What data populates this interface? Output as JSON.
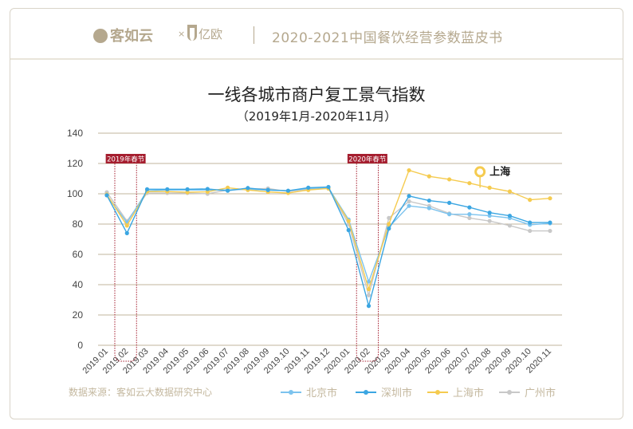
{
  "header": {
    "brand1": "客如云",
    "times": "×",
    "brand2": "亿欧",
    "report_title": "2020-2021中国餐饮经营参数蓝皮书"
  },
  "source": "数据来源：客如云大数据研究中心",
  "colors": {
    "beijing": "#7cc3ee",
    "shenzhen": "#3ba6e2",
    "shanghai": "#f5cb4f",
    "guangzhou": "#c8c8c8",
    "festival": "#a51e2f",
    "grid": "#c2b59c"
  },
  "chart_data": {
    "type": "line",
    "title": "一线各城市商户复工景气指数",
    "subtitle": "（2019年1月-2020年11月）",
    "xlabel": "",
    "ylabel": "",
    "ylim": [
      0,
      140
    ],
    "yticks": [
      0,
      20,
      40,
      60,
      80,
      100,
      120,
      140
    ],
    "grid": true,
    "legend_placement": "bottom-right",
    "x": [
      "2019.01",
      "2019.02",
      "2019.03",
      "2019.04",
      "2019.05",
      "2019.06",
      "2019.07",
      "2019.08",
      "2019.09",
      "2019.10",
      "2019.11",
      "2019.12",
      "2020.01",
      "2020.02",
      "2020.03",
      "2020.04",
      "2020.05",
      "2020.06",
      "2020.07",
      "2020.08",
      "2020.09",
      "2020.10",
      "2020.11"
    ],
    "series": [
      {
        "name": "北京市",
        "key": "beijing",
        "values": [
          99,
          81,
          102,
          102.5,
          102.5,
          102.5,
          102.5,
          103,
          102.5,
          102,
          103.5,
          104,
          83,
          42,
          78,
          92,
          90.5,
          86.5,
          86.5,
          85.5,
          84,
          79.5,
          80.5
        ]
      },
      {
        "name": "深圳市",
        "key": "shenzhen",
        "values": [
          99,
          74,
          103,
          103,
          103,
          103.2,
          102,
          103.8,
          102.5,
          102,
          104,
          104.5,
          76,
          26,
          77,
          98.5,
          95.5,
          94,
          91,
          87.5,
          85.5,
          81,
          81
        ]
      },
      {
        "name": "上海市",
        "key": "shanghai",
        "values": [
          99.5,
          79,
          101.5,
          101.5,
          101,
          101.3,
          104,
          102.5,
          101.2,
          100.5,
          102.5,
          103.5,
          82,
          37,
          80,
          115.5,
          111.5,
          109.5,
          107,
          104,
          101.5,
          96,
          97
        ]
      },
      {
        "name": "广州市",
        "key": "guangzhou",
        "values": [
          101,
          82,
          100.5,
          100.5,
          100.5,
          100,
          102.5,
          103,
          103.5,
          101.5,
          103,
          103.5,
          80,
          33,
          84,
          95,
          92,
          87,
          84,
          82,
          79,
          75.5,
          75.5
        ]
      }
    ],
    "annotations": [
      {
        "label": "2019年春节",
        "between": [
          "2019.01",
          "2019.02"
        ]
      },
      {
        "label": "2020年春节",
        "between": [
          "2020.01",
          "2020.02"
        ]
      },
      {
        "label": "上海",
        "at": "2020.08",
        "series": "上海市"
      }
    ]
  }
}
